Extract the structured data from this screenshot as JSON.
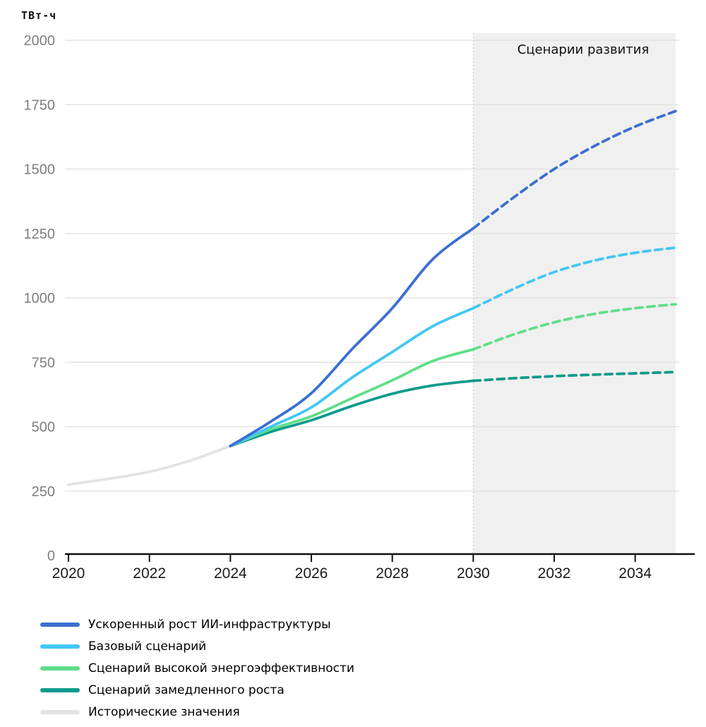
{
  "chart_data": {
    "type": "line",
    "unit_label": "ТВт-ч",
    "forecast_band": {
      "label": "Сценарии развития",
      "x_start": 2030,
      "x_end": 2035
    },
    "xlim": [
      2020,
      2035
    ],
    "ylim": [
      0,
      2000
    ],
    "xticks": [
      2020,
      2022,
      2024,
      2026,
      2028,
      2030,
      2032,
      2034
    ],
    "yticks": [
      0,
      250,
      500,
      750,
      1000,
      1250,
      1500,
      1750,
      2000
    ],
    "grid": true,
    "legend_position": "bottom-left",
    "series": [
      {
        "name": "Ускоренный рост ИИ-инфраструктуры",
        "color": "#3b6fd1",
        "start_year": 2024,
        "dashed_from": 2030,
        "years": [
          2024,
          2025,
          2026,
          2027,
          2028,
          2029,
          2030,
          2031,
          2032,
          2033,
          2034,
          2035
        ],
        "values": [
          425,
          520,
          630,
          800,
          960,
          1150,
          1270,
          1390,
          1500,
          1590,
          1665,
          1725
        ]
      },
      {
        "name": "Базовый сценарий",
        "color": "#42c7f4",
        "start_year": 2024,
        "dashed_from": 2030,
        "years": [
          2024,
          2025,
          2026,
          2027,
          2028,
          2029,
          2030,
          2031,
          2032,
          2033,
          2034,
          2035
        ],
        "values": [
          425,
          500,
          575,
          690,
          790,
          890,
          960,
          1035,
          1100,
          1145,
          1175,
          1195
        ]
      },
      {
        "name": "Сценарий высокой энергоэффективности",
        "color": "#60de89",
        "start_year": 2024,
        "dashed_from": 2030,
        "years": [
          2024,
          2025,
          2026,
          2027,
          2028,
          2029,
          2030,
          2031,
          2032,
          2033,
          2034,
          2035
        ],
        "values": [
          425,
          490,
          540,
          610,
          680,
          755,
          800,
          858,
          905,
          938,
          960,
          975
        ]
      },
      {
        "name": "Сценарий замедленного роста",
        "color": "#0e9a8d",
        "start_year": 2024,
        "dashed_from": 2030,
        "years": [
          2024,
          2025,
          2026,
          2027,
          2028,
          2029,
          2030,
          2031,
          2032,
          2033,
          2034,
          2035
        ],
        "values": [
          425,
          480,
          525,
          580,
          628,
          660,
          678,
          688,
          696,
          702,
          707,
          712
        ]
      },
      {
        "name": "Исторические значения",
        "color": "#e3e3e3",
        "start_year": 2020,
        "years": [
          2020,
          2021,
          2022,
          2023,
          2024
        ],
        "values": [
          275,
          298,
          325,
          368,
          425
        ]
      }
    ],
    "colors": {
      "grid": "#e3e3e3",
      "band_fill": "#f0f0f0",
      "band_edge": "#cfcfcf",
      "axis": "#111111",
      "y_tick_label": "#7e7e7e",
      "x_tick_label": "#1a1a1a"
    }
  }
}
